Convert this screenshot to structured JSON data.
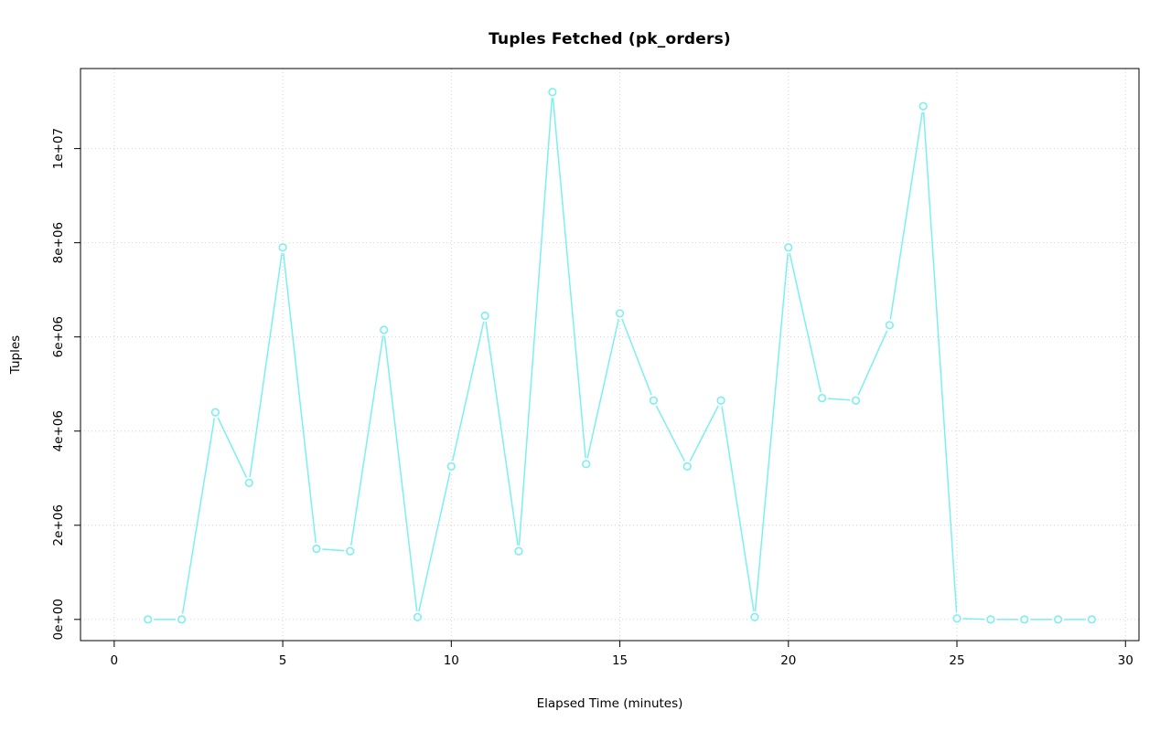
{
  "figure": {
    "title": "Tuples Fetched (pk_orders)",
    "xlabel": "Elapsed Time (minutes)",
    "ylabel": "Tuples"
  },
  "chart_data": {
    "type": "line",
    "title": "Tuples Fetched (pk_orders)",
    "xlabel": "Elapsed Time (minutes)",
    "ylabel": "Tuples",
    "x": [
      1,
      2,
      3,
      4,
      5,
      6,
      7,
      8,
      9,
      10,
      11,
      12,
      13,
      14,
      15,
      16,
      17,
      18,
      19,
      20,
      21,
      22,
      23,
      24,
      25,
      26,
      27,
      28,
      29
    ],
    "y": [
      0,
      0,
      4400000,
      2900000,
      7900000,
      1500000,
      1450000,
      6150000,
      50000,
      3250000,
      6450000,
      1450000,
      11200000,
      3300000,
      6500000,
      4650000,
      3250000,
      4650000,
      50000,
      7900000,
      4700000,
      4650000,
      6250000,
      10900000,
      20000,
      0,
      0,
      0,
      0
    ],
    "xlim": [
      0,
      30
    ],
    "ylim": [
      0,
      11200000
    ],
    "x_ticks": [
      0,
      5,
      10,
      15,
      20,
      25,
      30
    ],
    "x_tick_labels": [
      "0",
      "5",
      "10",
      "15",
      "20",
      "25",
      "30"
    ],
    "y_ticks": [
      0,
      2000000,
      4000000,
      6000000,
      8000000,
      10000000
    ],
    "y_tick_labels": [
      "0e+00",
      "2e+06",
      "4e+06",
      "6e+06",
      "8e+06",
      "1e+07"
    ],
    "grid": true,
    "grid_style": "dotted",
    "legend_position": "none",
    "marker": "open-circle",
    "colors": {
      "line": "#7DEFEF",
      "grid": "#D3D3D3",
      "axis": "#000000",
      "background": "#FFFFFF"
    }
  }
}
